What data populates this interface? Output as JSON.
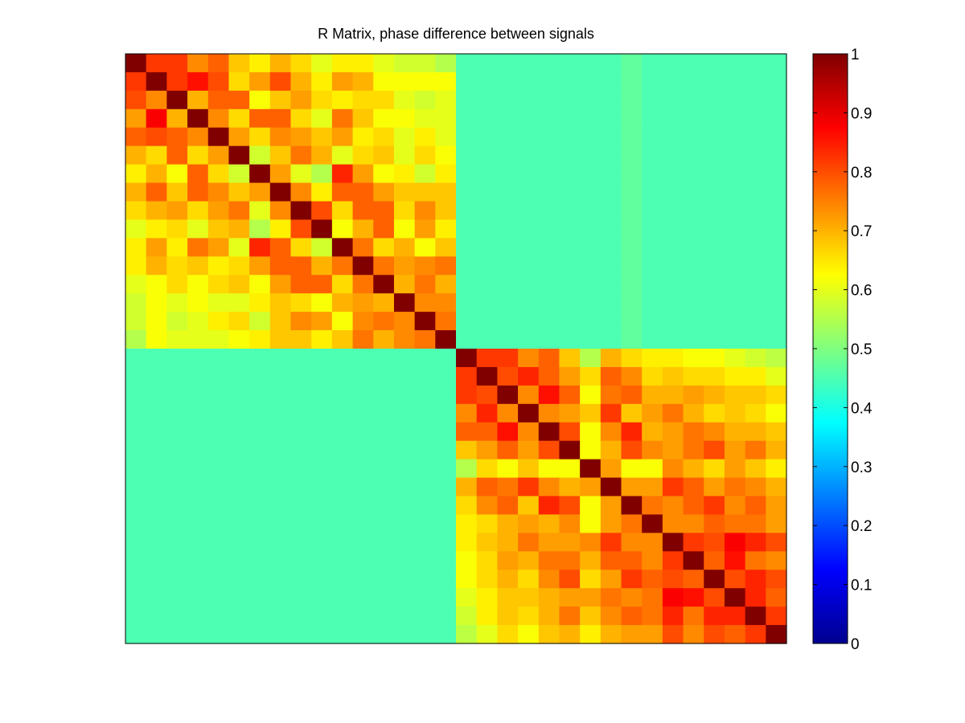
{
  "chart_data": {
    "type": "heatmap",
    "title": "R Matrix, phase difference between signals",
    "rows": 32,
    "cols": 32,
    "colormap": "jet",
    "clim": [
      0,
      1
    ],
    "colorbar": {
      "placement": "right",
      "ticks": [
        0,
        0.1,
        0.2,
        0.3,
        0.4,
        0.5,
        0.6,
        0.7,
        0.8,
        0.9,
        1
      ],
      "tick_labels": [
        "0",
        "0.1",
        "0.2",
        "0.3",
        "0.4",
        "0.5",
        "0.6",
        "0.7",
        "0.8",
        "0.9",
        "1"
      ]
    },
    "values": [
      [
        1.0,
        0.82,
        0.82,
        0.74,
        0.78,
        0.68,
        0.64,
        0.7,
        0.66,
        0.6,
        0.64,
        0.64,
        0.6,
        0.58,
        0.58,
        0.55,
        0.45,
        0.45,
        0.45,
        0.45,
        0.45,
        0.45,
        0.45,
        0.45,
        0.47,
        0.45,
        0.45,
        0.45,
        0.45,
        0.45,
        0.45,
        0.45
      ],
      [
        0.82,
        1.0,
        0.82,
        0.86,
        0.8,
        0.66,
        0.72,
        0.8,
        0.7,
        0.64,
        0.72,
        0.7,
        0.62,
        0.62,
        0.62,
        0.62,
        0.45,
        0.45,
        0.45,
        0.45,
        0.45,
        0.45,
        0.45,
        0.45,
        0.47,
        0.45,
        0.45,
        0.45,
        0.45,
        0.45,
        0.45,
        0.45
      ],
      [
        0.8,
        0.74,
        1.0,
        0.7,
        0.78,
        0.78,
        0.62,
        0.68,
        0.72,
        0.66,
        0.64,
        0.66,
        0.66,
        0.6,
        0.58,
        0.6,
        0.45,
        0.45,
        0.45,
        0.45,
        0.45,
        0.45,
        0.45,
        0.45,
        0.47,
        0.45,
        0.45,
        0.45,
        0.45,
        0.45,
        0.45,
        0.45
      ],
      [
        0.72,
        0.88,
        0.7,
        1.0,
        0.74,
        0.66,
        0.78,
        0.78,
        0.66,
        0.6,
        0.76,
        0.68,
        0.62,
        0.62,
        0.6,
        0.6,
        0.45,
        0.45,
        0.45,
        0.45,
        0.45,
        0.45,
        0.45,
        0.45,
        0.47,
        0.45,
        0.45,
        0.45,
        0.45,
        0.45,
        0.45,
        0.45
      ],
      [
        0.78,
        0.8,
        0.78,
        0.74,
        1.0,
        0.72,
        0.66,
        0.74,
        0.72,
        0.68,
        0.72,
        0.64,
        0.66,
        0.6,
        0.64,
        0.6,
        0.45,
        0.45,
        0.45,
        0.45,
        0.45,
        0.45,
        0.45,
        0.45,
        0.47,
        0.45,
        0.45,
        0.45,
        0.45,
        0.45,
        0.45,
        0.45
      ],
      [
        0.7,
        0.66,
        0.78,
        0.66,
        0.72,
        1.0,
        0.58,
        0.68,
        0.76,
        0.7,
        0.6,
        0.66,
        0.68,
        0.6,
        0.66,
        0.62,
        0.45,
        0.45,
        0.45,
        0.45,
        0.45,
        0.45,
        0.45,
        0.45,
        0.47,
        0.45,
        0.45,
        0.45,
        0.45,
        0.45,
        0.45,
        0.45
      ],
      [
        0.64,
        0.7,
        0.62,
        0.78,
        0.66,
        0.58,
        1.0,
        0.72,
        0.6,
        0.55,
        0.84,
        0.72,
        0.62,
        0.64,
        0.58,
        0.64,
        0.45,
        0.45,
        0.45,
        0.45,
        0.45,
        0.45,
        0.45,
        0.45,
        0.47,
        0.45,
        0.45,
        0.45,
        0.45,
        0.45,
        0.45,
        0.45
      ],
      [
        0.7,
        0.78,
        0.68,
        0.78,
        0.74,
        0.68,
        0.72,
        1.0,
        0.74,
        0.64,
        0.78,
        0.78,
        0.72,
        0.68,
        0.68,
        0.68,
        0.45,
        0.45,
        0.45,
        0.45,
        0.45,
        0.45,
        0.45,
        0.45,
        0.47,
        0.45,
        0.45,
        0.45,
        0.45,
        0.45,
        0.45,
        0.45
      ],
      [
        0.66,
        0.7,
        0.72,
        0.66,
        0.72,
        0.76,
        0.6,
        0.74,
        1.0,
        0.8,
        0.66,
        0.78,
        0.78,
        0.66,
        0.74,
        0.68,
        0.45,
        0.45,
        0.45,
        0.45,
        0.45,
        0.45,
        0.45,
        0.45,
        0.47,
        0.45,
        0.45,
        0.45,
        0.45,
        0.45,
        0.45,
        0.45
      ],
      [
        0.6,
        0.64,
        0.66,
        0.6,
        0.68,
        0.7,
        0.55,
        0.64,
        0.8,
        1.0,
        0.62,
        0.7,
        0.78,
        0.62,
        0.72,
        0.64,
        0.45,
        0.45,
        0.45,
        0.45,
        0.45,
        0.45,
        0.45,
        0.45,
        0.47,
        0.45,
        0.45,
        0.45,
        0.45,
        0.45,
        0.45,
        0.45
      ],
      [
        0.64,
        0.72,
        0.64,
        0.76,
        0.72,
        0.6,
        0.84,
        0.78,
        0.66,
        0.58,
        1.0,
        0.76,
        0.66,
        0.7,
        0.62,
        0.68,
        0.45,
        0.45,
        0.45,
        0.45,
        0.45,
        0.45,
        0.45,
        0.45,
        0.47,
        0.45,
        0.45,
        0.45,
        0.45,
        0.45,
        0.45,
        0.45
      ],
      [
        0.64,
        0.7,
        0.66,
        0.68,
        0.64,
        0.66,
        0.72,
        0.78,
        0.78,
        0.7,
        0.76,
        1.0,
        0.76,
        0.72,
        0.74,
        0.76,
        0.45,
        0.45,
        0.45,
        0.45,
        0.45,
        0.45,
        0.45,
        0.45,
        0.47,
        0.45,
        0.45,
        0.45,
        0.45,
        0.45,
        0.45,
        0.45
      ],
      [
        0.6,
        0.62,
        0.66,
        0.62,
        0.66,
        0.68,
        0.62,
        0.72,
        0.78,
        0.78,
        0.66,
        0.76,
        1.0,
        0.7,
        0.76,
        0.7,
        0.45,
        0.45,
        0.45,
        0.45,
        0.45,
        0.45,
        0.45,
        0.45,
        0.47,
        0.45,
        0.45,
        0.45,
        0.45,
        0.45,
        0.45,
        0.45
      ],
      [
        0.58,
        0.62,
        0.6,
        0.62,
        0.6,
        0.6,
        0.64,
        0.68,
        0.66,
        0.62,
        0.7,
        0.72,
        0.7,
        1.0,
        0.74,
        0.74,
        0.45,
        0.45,
        0.45,
        0.45,
        0.45,
        0.45,
        0.45,
        0.45,
        0.47,
        0.45,
        0.45,
        0.45,
        0.45,
        0.45,
        0.45,
        0.45
      ],
      [
        0.58,
        0.62,
        0.58,
        0.6,
        0.64,
        0.66,
        0.58,
        0.68,
        0.74,
        0.72,
        0.62,
        0.74,
        0.76,
        0.74,
        1.0,
        0.76,
        0.45,
        0.45,
        0.45,
        0.45,
        0.45,
        0.45,
        0.45,
        0.45,
        0.47,
        0.45,
        0.45,
        0.45,
        0.45,
        0.45,
        0.45,
        0.45
      ],
      [
        0.55,
        0.62,
        0.6,
        0.6,
        0.6,
        0.62,
        0.64,
        0.68,
        0.68,
        0.64,
        0.68,
        0.76,
        0.7,
        0.74,
        0.76,
        1.0,
        0.45,
        0.45,
        0.45,
        0.45,
        0.45,
        0.45,
        0.45,
        0.45,
        0.47,
        0.45,
        0.45,
        0.45,
        0.45,
        0.45,
        0.45,
        0.45
      ],
      [
        0.45,
        0.45,
        0.45,
        0.45,
        0.45,
        0.45,
        0.45,
        0.45,
        0.45,
        0.45,
        0.45,
        0.45,
        0.45,
        0.45,
        0.45,
        0.45,
        1.0,
        0.82,
        0.82,
        0.74,
        0.78,
        0.68,
        0.55,
        0.7,
        0.66,
        0.64,
        0.64,
        0.62,
        0.62,
        0.6,
        0.58,
        0.56
      ],
      [
        0.45,
        0.45,
        0.45,
        0.45,
        0.45,
        0.45,
        0.45,
        0.45,
        0.45,
        0.45,
        0.45,
        0.45,
        0.45,
        0.45,
        0.45,
        0.45,
        0.82,
        1.0,
        0.8,
        0.84,
        0.78,
        0.72,
        0.66,
        0.78,
        0.74,
        0.66,
        0.68,
        0.66,
        0.66,
        0.64,
        0.64,
        0.6
      ],
      [
        0.45,
        0.45,
        0.45,
        0.45,
        0.45,
        0.45,
        0.45,
        0.45,
        0.45,
        0.45,
        0.45,
        0.45,
        0.45,
        0.45,
        0.45,
        0.45,
        0.82,
        0.8,
        1.0,
        0.74,
        0.86,
        0.78,
        0.62,
        0.76,
        0.78,
        0.7,
        0.7,
        0.72,
        0.7,
        0.68,
        0.68,
        0.66
      ],
      [
        0.45,
        0.45,
        0.45,
        0.45,
        0.45,
        0.45,
        0.45,
        0.45,
        0.45,
        0.45,
        0.45,
        0.45,
        0.45,
        0.45,
        0.45,
        0.45,
        0.74,
        0.84,
        0.74,
        1.0,
        0.74,
        0.72,
        0.68,
        0.82,
        0.68,
        0.72,
        0.76,
        0.7,
        0.66,
        0.68,
        0.66,
        0.62
      ],
      [
        0.45,
        0.45,
        0.45,
        0.45,
        0.45,
        0.45,
        0.45,
        0.45,
        0.45,
        0.45,
        0.45,
        0.45,
        0.45,
        0.45,
        0.45,
        0.45,
        0.78,
        0.78,
        0.86,
        0.74,
        1.0,
        0.8,
        0.62,
        0.74,
        0.84,
        0.7,
        0.72,
        0.76,
        0.74,
        0.7,
        0.7,
        0.68
      ],
      [
        0.45,
        0.45,
        0.45,
        0.45,
        0.45,
        0.45,
        0.45,
        0.45,
        0.45,
        0.45,
        0.45,
        0.45,
        0.45,
        0.45,
        0.45,
        0.45,
        0.68,
        0.72,
        0.78,
        0.72,
        0.8,
        1.0,
        0.62,
        0.7,
        0.8,
        0.74,
        0.72,
        0.76,
        0.8,
        0.72,
        0.76,
        0.7
      ],
      [
        0.45,
        0.45,
        0.45,
        0.45,
        0.45,
        0.45,
        0.45,
        0.45,
        0.45,
        0.45,
        0.45,
        0.45,
        0.45,
        0.45,
        0.45,
        0.45,
        0.55,
        0.66,
        0.62,
        0.68,
        0.62,
        0.62,
        1.0,
        0.72,
        0.62,
        0.62,
        0.74,
        0.7,
        0.66,
        0.72,
        0.68,
        0.64
      ],
      [
        0.45,
        0.45,
        0.45,
        0.45,
        0.45,
        0.45,
        0.45,
        0.45,
        0.45,
        0.45,
        0.45,
        0.45,
        0.45,
        0.45,
        0.45,
        0.45,
        0.7,
        0.78,
        0.76,
        0.82,
        0.74,
        0.7,
        0.72,
        1.0,
        0.72,
        0.72,
        0.82,
        0.78,
        0.72,
        0.76,
        0.74,
        0.7
      ],
      [
        0.45,
        0.45,
        0.45,
        0.45,
        0.45,
        0.45,
        0.45,
        0.45,
        0.45,
        0.45,
        0.45,
        0.45,
        0.45,
        0.45,
        0.45,
        0.45,
        0.66,
        0.74,
        0.78,
        0.68,
        0.84,
        0.8,
        0.62,
        0.72,
        1.0,
        0.76,
        0.74,
        0.78,
        0.82,
        0.74,
        0.78,
        0.72
      ],
      [
        0.45,
        0.45,
        0.45,
        0.45,
        0.45,
        0.45,
        0.45,
        0.45,
        0.45,
        0.45,
        0.45,
        0.45,
        0.45,
        0.45,
        0.45,
        0.45,
        0.64,
        0.66,
        0.7,
        0.72,
        0.7,
        0.74,
        0.62,
        0.72,
        0.76,
        1.0,
        0.74,
        0.74,
        0.78,
        0.76,
        0.76,
        0.72
      ],
      [
        0.45,
        0.45,
        0.45,
        0.45,
        0.45,
        0.45,
        0.45,
        0.45,
        0.45,
        0.45,
        0.45,
        0.45,
        0.45,
        0.45,
        0.45,
        0.45,
        0.64,
        0.68,
        0.7,
        0.76,
        0.72,
        0.72,
        0.74,
        0.82,
        0.74,
        0.74,
        1.0,
        0.82,
        0.8,
        0.88,
        0.84,
        0.8
      ],
      [
        0.45,
        0.45,
        0.45,
        0.45,
        0.45,
        0.45,
        0.45,
        0.45,
        0.45,
        0.45,
        0.45,
        0.45,
        0.45,
        0.45,
        0.45,
        0.45,
        0.62,
        0.66,
        0.72,
        0.7,
        0.76,
        0.76,
        0.7,
        0.78,
        0.78,
        0.74,
        0.82,
        1.0,
        0.78,
        0.86,
        0.76,
        0.74
      ],
      [
        0.45,
        0.45,
        0.45,
        0.45,
        0.45,
        0.45,
        0.45,
        0.45,
        0.45,
        0.45,
        0.45,
        0.45,
        0.45,
        0.45,
        0.45,
        0.45,
        0.62,
        0.66,
        0.7,
        0.66,
        0.74,
        0.8,
        0.66,
        0.72,
        0.82,
        0.78,
        0.8,
        0.78,
        1.0,
        0.8,
        0.84,
        0.8
      ],
      [
        0.45,
        0.45,
        0.45,
        0.45,
        0.45,
        0.45,
        0.45,
        0.45,
        0.45,
        0.45,
        0.45,
        0.45,
        0.45,
        0.45,
        0.45,
        0.45,
        0.6,
        0.64,
        0.68,
        0.68,
        0.7,
        0.72,
        0.72,
        0.76,
        0.74,
        0.76,
        0.88,
        0.86,
        0.8,
        1.0,
        0.84,
        0.78
      ],
      [
        0.45,
        0.45,
        0.45,
        0.45,
        0.45,
        0.45,
        0.45,
        0.45,
        0.45,
        0.45,
        0.45,
        0.45,
        0.45,
        0.45,
        0.45,
        0.45,
        0.58,
        0.64,
        0.68,
        0.66,
        0.7,
        0.76,
        0.68,
        0.74,
        0.78,
        0.76,
        0.84,
        0.76,
        0.84,
        0.84,
        1.0,
        0.82
      ],
      [
        0.45,
        0.45,
        0.45,
        0.45,
        0.45,
        0.45,
        0.45,
        0.45,
        0.45,
        0.45,
        0.45,
        0.45,
        0.45,
        0.45,
        0.45,
        0.45,
        0.56,
        0.6,
        0.66,
        0.62,
        0.68,
        0.7,
        0.64,
        0.7,
        0.72,
        0.72,
        0.8,
        0.74,
        0.8,
        0.78,
        0.82,
        1.0
      ]
    ]
  }
}
